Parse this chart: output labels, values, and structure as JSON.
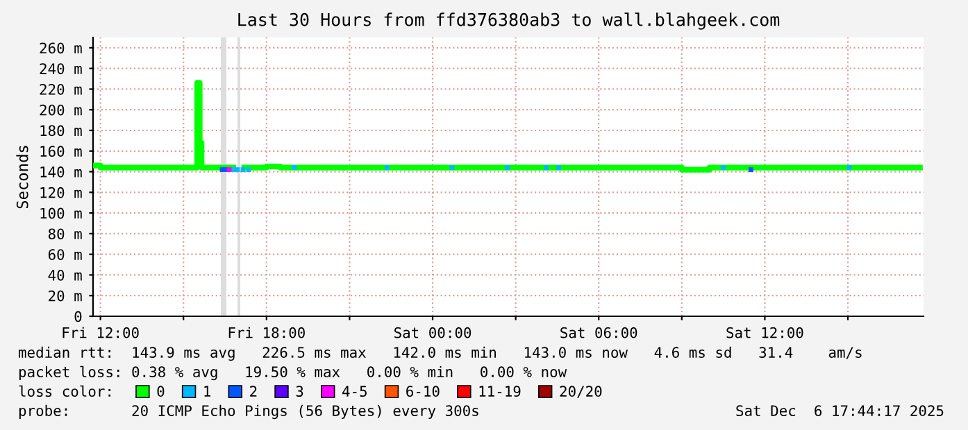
{
  "chart_data": {
    "type": "line",
    "title": "Last 30 Hours from ffd376380ab3 to wall.blahgeek.com",
    "ylabel": "Seconds",
    "xlim": [
      "2025-12-05T11:44",
      "2025-12-06T17:44"
    ],
    "xticks": [
      {
        "value": "2025-12-05T12:00",
        "label": "Fri 12:00"
      },
      {
        "value": "2025-12-05T15:00",
        "label": null
      },
      {
        "value": "2025-12-05T18:00",
        "label": "Fri 18:00"
      },
      {
        "value": "2025-12-05T21:00",
        "label": null
      },
      {
        "value": "2025-12-06T00:00",
        "label": "Sat 00:00"
      },
      {
        "value": "2025-12-06T03:00",
        "label": null
      },
      {
        "value": "2025-12-06T06:00",
        "label": "Sat 06:00"
      },
      {
        "value": "2025-12-06T09:00",
        "label": null
      },
      {
        "value": "2025-12-06T12:00",
        "label": "Sat 12:00"
      },
      {
        "value": "2025-12-06T15:00",
        "label": null
      }
    ],
    "ylim": [
      0,
      270
    ],
    "yticks": [
      {
        "value": 0,
        "label": "0"
      },
      {
        "value": 20,
        "label": "20 m"
      },
      {
        "value": 40,
        "label": "40 m"
      },
      {
        "value": 60,
        "label": "60 m"
      },
      {
        "value": 80,
        "label": "80 m"
      },
      {
        "value": 100,
        "label": "100 m"
      },
      {
        "value": 120,
        "label": "120 m"
      },
      {
        "value": 140,
        "label": "140 m"
      },
      {
        "value": 160,
        "label": "160 m"
      },
      {
        "value": 180,
        "label": "180 m"
      },
      {
        "value": 200,
        "label": "200 m"
      },
      {
        "value": 220,
        "label": "220 m"
      },
      {
        "value": 240,
        "label": "240 m"
      },
      {
        "value": 260,
        "label": "260 m"
      }
    ],
    "grid": true,
    "legend": "bottom",
    "legend_title": "loss color:",
    "bands": [
      {
        "axis": "x",
        "from": "2025-12-05T16:21",
        "to": "2025-12-05T16:33",
        "color": "#dddddd"
      },
      {
        "axis": "x",
        "from": "2025-12-05T16:57",
        "to": "2025-12-05T17:03",
        "color": "#dddddd"
      }
    ],
    "series": [
      {
        "name": "0",
        "color": "#00ff00",
        "x": [
          "2025-12-05T11:48",
          "2025-12-05T12:00",
          "2025-12-05T13:30",
          "2025-12-05T15:00",
          "2025-12-05T15:27",
          "2025-12-05T15:30",
          "2025-12-05T15:35",
          "2025-12-05T15:39",
          "2025-12-05T15:43",
          "2025-12-05T16:18",
          "2025-12-05T16:48",
          "2025-12-05T17:12",
          "2025-12-05T17:30",
          "2025-12-05T18:00",
          "2025-12-05T18:30",
          "2025-12-05T19:30",
          "2025-12-05T21:00",
          "2025-12-06T00:00",
          "2025-12-06T03:00",
          "2025-12-06T06:00",
          "2025-12-06T08:30",
          "2025-12-06T09:00",
          "2025-12-06T09:36",
          "2025-12-06T10:00",
          "2025-12-06T12:00",
          "2025-12-06T14:00",
          "2025-12-06T16:00",
          "2025-12-06T17:36"
        ],
        "values": [
          146,
          144,
          144,
          144,
          144,
          226,
          168,
          144,
          144,
          144,
          null,
          144,
          144,
          145,
          144,
          144,
          144,
          144,
          144,
          144,
          144,
          142,
          142,
          144,
          144,
          144,
          144,
          144
        ]
      },
      {
        "name": "1",
        "color": "#00b8ff",
        "type": "scatter",
        "x": [
          "2025-12-05T16:48",
          "2025-12-05T16:57",
          "2025-12-05T17:09",
          "2025-12-05T17:21",
          "2025-12-05T19:00",
          "2025-12-05T22:21",
          "2025-12-06T00:42",
          "2025-12-06T02:42",
          "2025-12-06T04:06",
          "2025-12-06T04:33",
          "2025-12-06T10:30",
          "2025-12-06T15:03"
        ],
        "values": [
          142,
          142,
          142,
          142,
          144,
          144,
          144,
          144,
          144,
          144,
          144,
          144
        ]
      },
      {
        "name": "2",
        "color": "#0059ff",
        "type": "scatter",
        "x": [
          "2025-12-05T16:24",
          "2025-12-05T16:30",
          "2025-12-06T11:30"
        ],
        "values": [
          142,
          142,
          142
        ]
      },
      {
        "name": "3",
        "color": "#5e00ff",
        "type": "scatter"
      },
      {
        "name": "4-5",
        "color": "#ff00ff",
        "type": "scatter",
        "x": [
          "2025-12-05T16:39"
        ],
        "values": [
          142
        ]
      },
      {
        "name": "6-10",
        "color": "#ff5500",
        "type": "scatter"
      },
      {
        "name": "11-19",
        "color": "#ff0000",
        "type": "scatter"
      },
      {
        "name": "20/20",
        "color": "#a10000",
        "type": "scatter"
      }
    ],
    "annotations": [
      "median rtt:  143.9 ms avg   226.5 ms max   142.0 ms min   143.0 ms now   4.6 ms sd   31.4    am/s",
      "packet loss: 0.38 % avg   19.50 % max   0.00 % min   0.00 % now",
      "probe:       20 ICMP Echo Pings (56 Bytes) every 300s",
      "Sat Dec  6 17:44:17 2025"
    ]
  }
}
